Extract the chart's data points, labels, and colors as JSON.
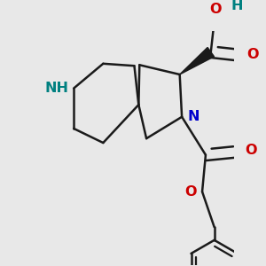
{
  "background_color": "#e8e8e8",
  "bond_color": "#1a1a1a",
  "N_color": "#0000cc",
  "NH_color": "#008080",
  "O_color": "#cc0000",
  "line_width": 1.8,
  "figsize": [
    3.0,
    3.0
  ],
  "dpi": 100,
  "xlim": [
    -2.5,
    2.5
  ],
  "ylim": [
    -3.2,
    2.2
  ]
}
